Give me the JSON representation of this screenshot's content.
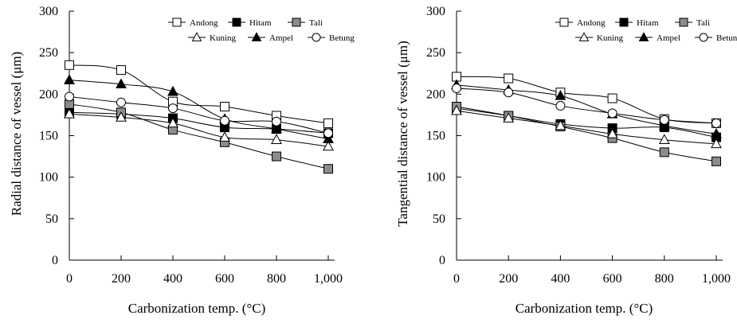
{
  "chart_data": [
    {
      "type": "line",
      "title": "",
      "xlabel": "Carbonization temp. (°C)",
      "ylabel": "Radial distance of vessel (μm)",
      "x": [
        0,
        200,
        400,
        600,
        800,
        1000
      ],
      "x_tick_labels": [
        "0",
        "200",
        "400",
        "600",
        "800",
        "1,000"
      ],
      "y_ticks": [
        0,
        50,
        100,
        150,
        200,
        250,
        300
      ],
      "ylim": [
        0,
        300
      ],
      "xlim": [
        0,
        1000
      ],
      "legend_position": "top-right",
      "series": [
        {
          "name": "Andong",
          "marker": "open-square",
          "values": [
            235,
            229,
            191,
            185,
            174,
            165
          ]
        },
        {
          "name": "Hitam",
          "marker": "filled-square",
          "values": [
            178,
            176,
            171,
            160,
            158,
            153
          ]
        },
        {
          "name": "Tali",
          "marker": "gray-square",
          "values": [
            188,
            178,
            157,
            142,
            125,
            110
          ]
        },
        {
          "name": "Kuning",
          "marker": "open-triangle",
          "values": [
            176,
            172,
            165,
            148,
            145,
            137
          ]
        },
        {
          "name": "Ampel",
          "marker": "filled-triangle",
          "values": [
            217,
            212,
            203,
            170,
            158,
            146
          ]
        },
        {
          "name": "Betung",
          "marker": "open-circle",
          "values": [
            197,
            190,
            183,
            168,
            167,
            153
          ]
        }
      ]
    },
    {
      "type": "line",
      "title": "",
      "xlabel": "Carbonization temp. (°C)",
      "ylabel": "Tangential distance of vessel (μm)",
      "x": [
        0,
        200,
        400,
        600,
        800,
        1000
      ],
      "x_tick_labels": [
        "0",
        "200",
        "400",
        "600",
        "800",
        "1,000"
      ],
      "y_ticks": [
        0,
        50,
        100,
        150,
        200,
        250,
        300
      ],
      "ylim": [
        0,
        300
      ],
      "xlim": [
        0,
        1000
      ],
      "legend_position": "top-right",
      "series": [
        {
          "name": "Andong",
          "marker": "open-square",
          "values": [
            221,
            219,
            202,
            195,
            170,
            165
          ]
        },
        {
          "name": "Hitam",
          "marker": "filled-square",
          "values": [
            183,
            174,
            164,
            159,
            160,
            148
          ]
        },
        {
          "name": "Tali",
          "marker": "gray-square",
          "values": [
            185,
            174,
            161,
            147,
            130,
            119
          ]
        },
        {
          "name": "Kuning",
          "marker": "open-triangle",
          "values": [
            180,
            171,
            162,
            152,
            145,
            140
          ]
        },
        {
          "name": "Ampel",
          "marker": "filled-triangle",
          "values": [
            211,
            205,
            198,
            176,
            162,
            152
          ]
        },
        {
          "name": "Betung",
          "marker": "open-circle",
          "values": [
            207,
            202,
            186,
            177,
            169,
            165
          ]
        }
      ]
    }
  ],
  "colors": {
    "line": "#000000",
    "open_fill": "#ffffff",
    "filled": "#000000",
    "gray_fill": "#8c8c8c"
  }
}
